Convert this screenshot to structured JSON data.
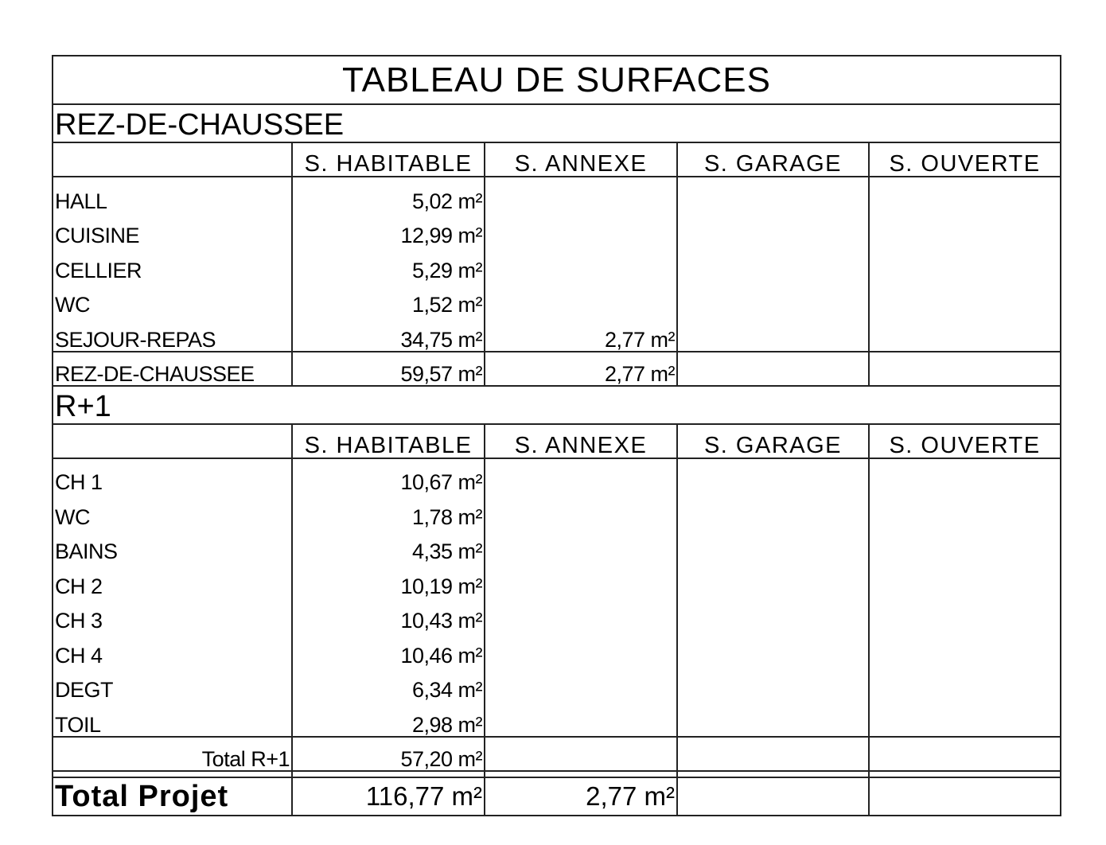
{
  "title": "TABLEAU DE SURFACES",
  "columns": [
    "",
    "S. HABITABLE",
    "S. ANNEXE",
    "S. GARAGE",
    "S. OUVERTE"
  ],
  "sections": [
    {
      "name": "REZ-DE-CHAUSSEE",
      "rows": [
        {
          "label": "HALL",
          "values": [
            "5,02 m²",
            "",
            "",
            ""
          ]
        },
        {
          "label": "CUISINE",
          "values": [
            "12,99 m²",
            "",
            "",
            ""
          ]
        },
        {
          "label": "CELLIER",
          "values": [
            "5,29 m²",
            "",
            "",
            ""
          ]
        },
        {
          "label": "WC",
          "values": [
            "1,52 m²",
            "",
            "",
            ""
          ]
        },
        {
          "label": "SEJOUR-REPAS",
          "values": [
            "34,75 m²",
            "2,77 m²",
            "",
            ""
          ]
        }
      ],
      "subtotal": {
        "label": "REZ-DE-CHAUSSEE",
        "align": "left",
        "values": [
          "59,57 m²",
          "2,77 m²",
          "",
          ""
        ]
      }
    },
    {
      "name": "R+1",
      "rows": [
        {
          "label": "CH 1",
          "values": [
            "10,67 m²",
            "",
            "",
            ""
          ]
        },
        {
          "label": "WC",
          "values": [
            "1,78 m²",
            "",
            "",
            ""
          ]
        },
        {
          "label": "BAINS",
          "values": [
            "4,35 m²",
            "",
            "",
            ""
          ]
        },
        {
          "label": "CH 2",
          "values": [
            "10,19 m²",
            "",
            "",
            ""
          ]
        },
        {
          "label": "CH 3",
          "values": [
            "10,43 m²",
            "",
            "",
            ""
          ]
        },
        {
          "label": "CH 4",
          "values": [
            "10,46 m²",
            "",
            "",
            ""
          ]
        },
        {
          "label": "DEGT",
          "values": [
            "6,34 m²",
            "",
            "",
            ""
          ]
        },
        {
          "label": "TOIL",
          "values": [
            "2,98 m²",
            "",
            "",
            ""
          ]
        }
      ],
      "subtotal": {
        "label": "Total R+1",
        "align": "right",
        "values": [
          "57,20 m²",
          "",
          "",
          ""
        ]
      }
    }
  ],
  "total": {
    "label": "Total Projet",
    "values": [
      "116,77 m²",
      "2,77 m²",
      "",
      ""
    ]
  }
}
